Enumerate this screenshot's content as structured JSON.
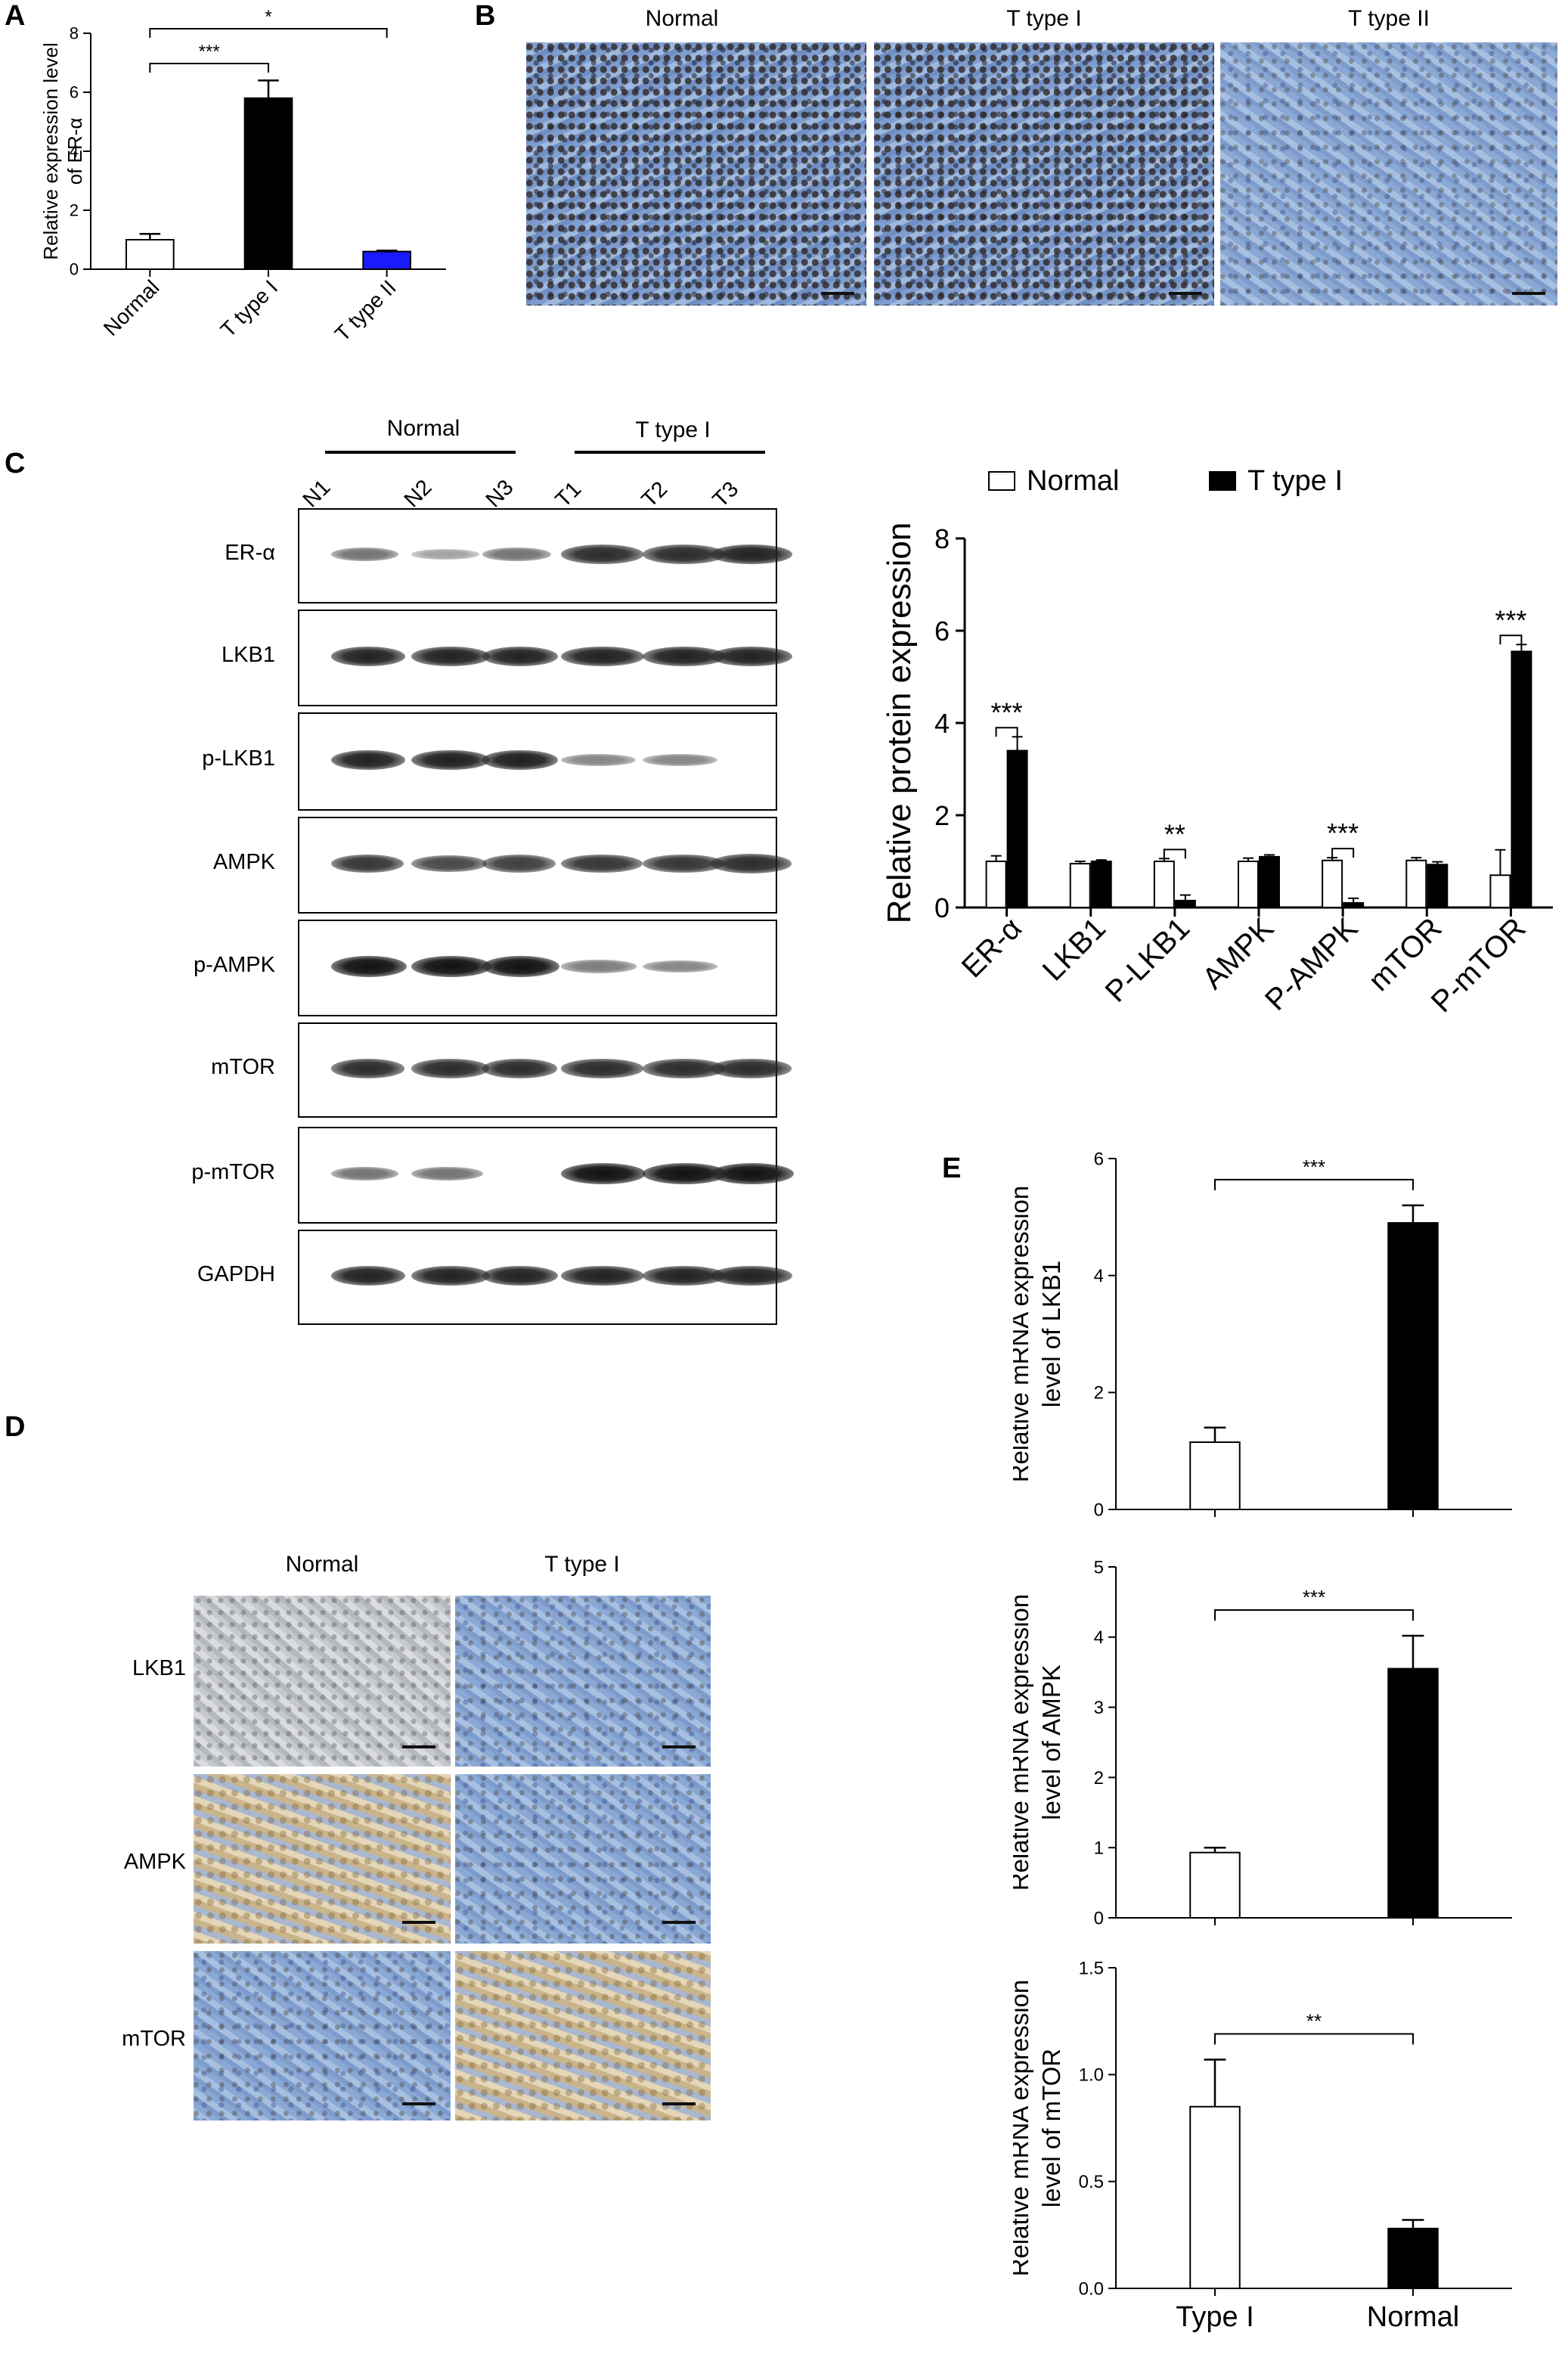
{
  "panels": {
    "A": "A",
    "B": "B",
    "C": "C",
    "D": "D",
    "E": "E"
  },
  "panelB": {
    "headers": [
      "Normal",
      "T type I",
      "T type II"
    ]
  },
  "panelC_blot": {
    "group_normal": "Normal",
    "group_tumor": "T type I",
    "lanes": [
      "N1",
      "N2",
      "N3",
      "T1",
      "T2",
      "T3"
    ],
    "rows": [
      "ER-α",
      "LKB1",
      "p-LKB1",
      "AMPK",
      "p-AMPK",
      "mTOR",
      "p-mTOR",
      "GAPDH"
    ]
  },
  "panelD": {
    "headers": [
      "Normal",
      "T type I"
    ],
    "rows": [
      "LKB1",
      "AMPK",
      "mTOR"
    ]
  },
  "chart_data": [
    {
      "panel": "A",
      "type": "bar",
      "categories": [
        "Normal",
        "T type I",
        "T type II"
      ],
      "values": [
        1.0,
        5.8,
        0.6
      ],
      "errors": [
        0.2,
        0.6,
        0.03
      ],
      "colors": [
        "#ffffff",
        "#000000",
        "#1a1aff"
      ],
      "ylabel_lines": [
        "Relative expression level",
        "of ER-α"
      ],
      "ylim": [
        0,
        8
      ],
      "yticks": [
        "0",
        "2",
        "4",
        "6",
        "8"
      ],
      "significance": [
        {
          "from": 0,
          "to": 1,
          "label": "***"
        },
        {
          "from": 0,
          "to": 2,
          "label": "*"
        }
      ]
    },
    {
      "panel": "C",
      "type": "bar",
      "categories": [
        "ER-α",
        "LKB1",
        "P-LKB1",
        "AMPK",
        "P-AMPK",
        "mTOR",
        "P-mTOR"
      ],
      "series": [
        {
          "name": "Normal",
          "values": [
            1.0,
            0.95,
            1.0,
            1.0,
            1.02,
            1.02,
            0.7
          ],
          "errors": [
            0.12,
            0.05,
            0.06,
            0.07,
            0.06,
            0.06,
            0.55
          ],
          "color": "#ffffff"
        },
        {
          "name": "T type I",
          "values": [
            3.4,
            1.0,
            0.15,
            1.1,
            0.1,
            0.93,
            5.55
          ],
          "errors": [
            0.3,
            0.03,
            0.12,
            0.04,
            0.1,
            0.06,
            0.15
          ],
          "color": "#000000"
        }
      ],
      "ylabel": "Relative protein expression",
      "ylim": [
        0,
        8
      ],
      "yticks": [
        "0",
        "2",
        "4",
        "6",
        "8"
      ],
      "legend_position": "top",
      "significance": [
        "***",
        "",
        "**",
        "",
        "***",
        "",
        "***"
      ]
    },
    {
      "panel": "E1",
      "type": "bar",
      "categories": [
        "Type I",
        "Normal"
      ],
      "values": [
        1.15,
        4.9
      ],
      "errors": [
        0.25,
        0.3
      ],
      "colors": [
        "#ffffff",
        "#000000"
      ],
      "ylabel_lines": [
        "Relative mRNA expression",
        "level of  LKB1"
      ],
      "ylim": [
        0,
        6
      ],
      "yticks": [
        "0",
        "2",
        "4",
        "6"
      ],
      "significance": "***",
      "show_xlabels": false
    },
    {
      "panel": "E2",
      "type": "bar",
      "categories": [
        "Type I",
        "Normal"
      ],
      "values": [
        0.93,
        3.55
      ],
      "errors": [
        0.07,
        0.47
      ],
      "colors": [
        "#ffffff",
        "#000000"
      ],
      "ylabel_lines": [
        "Relative mRNA expression",
        "level of  AMPK"
      ],
      "ylim": [
        0,
        5
      ],
      "yticks": [
        "0",
        "1",
        "2",
        "3",
        "4",
        "5"
      ],
      "significance": "***",
      "show_xlabels": false
    },
    {
      "panel": "E3",
      "type": "bar",
      "categories": [
        "Type I",
        "Normal"
      ],
      "values": [
        0.85,
        0.28
      ],
      "errors": [
        0.22,
        0.04
      ],
      "colors": [
        "#ffffff",
        "#000000"
      ],
      "ylabel_lines": [
        "Relative mRNA expression",
        "level of  mTOR"
      ],
      "ylim": [
        0,
        1.5
      ],
      "yticks": [
        "0.0",
        "0.5",
        "1.0",
        "1.5"
      ],
      "significance": "**",
      "show_xlabels": true
    }
  ]
}
